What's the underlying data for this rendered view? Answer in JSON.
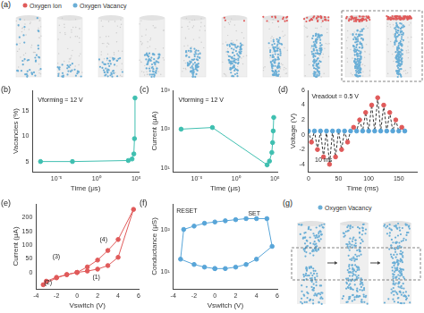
{
  "diagrams": {
    "a": {
      "label": "(a)",
      "legend": [
        {
          "text": "Oxygen Ion",
          "color": "#e05a5a"
        },
        {
          "text": "Oxygen Vacancy",
          "color": "#6aaed6"
        }
      ]
    },
    "g": {
      "label": "(g)",
      "legend": [
        {
          "text": "Oxygen Vacancy",
          "color": "#6aaed6"
        }
      ]
    }
  },
  "chart_data": [
    {
      "panel": "(b)",
      "type": "line",
      "x_label": "Time (μs)",
      "y_label": "Vacancies (%)",
      "log": "x",
      "grid": false,
      "xlim": [
        1e-08,
        200000.0
      ],
      "xticks": [
        {
          "value": 1e-05,
          "label": "10⁻⁵"
        },
        {
          "value": 1,
          "label": "10⁰"
        },
        {
          "value": 100000.0,
          "label": "10⁵"
        }
      ],
      "ylim": [
        3,
        19
      ],
      "yticks": [
        5,
        10,
        15
      ],
      "annotations": [
        "Vforming = 12 V"
      ],
      "series": [
        {
          "color": "#3fbfb0",
          "marker": "circle",
          "line_style": "solid",
          "x": [
            1e-07,
            0.001,
            10000.0,
            30000.0,
            50000.0,
            60000.0,
            70000.0
          ],
          "values": [
            5,
            5,
            5.2,
            5.5,
            6.5,
            9.5,
            17.5
          ]
        }
      ]
    },
    {
      "panel": "(c)",
      "type": "line",
      "x_label": "Time (μs)",
      "y_label": "Current (μA)",
      "log": true,
      "grid": false,
      "xlim": [
        1e-08,
        200000.0
      ],
      "xticks": [
        {
          "value": 1e-05,
          "label": "10⁻⁵"
        },
        {
          "value": 1,
          "label": "10⁰"
        },
        {
          "value": 100000.0,
          "label": "10⁵"
        }
      ],
      "ylim": [
        8,
        1000
      ],
      "yticks": [
        {
          "value": 10,
          "label": "10¹"
        },
        {
          "value": 100,
          "label": "10²"
        },
        {
          "value": 1000,
          "label": "10³"
        }
      ],
      "annotations": [
        "Vforming = 12 V"
      ],
      "series": [
        {
          "color": "#3fbfb0",
          "marker": "circle",
          "line_style": "solid",
          "x": [
            1e-07,
            0.001,
            10000.0,
            20000.0,
            40000.0,
            50000.0,
            60000.0,
            70000.0
          ],
          "values": [
            100,
            110,
            12,
            15,
            25,
            45,
            90,
            200
          ]
        }
      ]
    },
    {
      "panel": "(d)",
      "type": "line",
      "x_label": "Time (ms)",
      "y_label": "Voltage (V)",
      "grid": false,
      "xlim": [
        0,
        180
      ],
      "xticks": [
        0,
        50,
        100,
        150
      ],
      "ylim": [
        -5,
        6
      ],
      "yticks": [
        -4,
        -2,
        0,
        2,
        4,
        6
      ],
      "annotations": [
        "Vreadout = 0.5 V",
        "10 ms"
      ],
      "series": [
        {
          "color": "#333333",
          "marker": "circle",
          "line_style": "dashed",
          "x": [
            0,
            5,
            10,
            15,
            20,
            25,
            30,
            35,
            40,
            45,
            50,
            55,
            60,
            65,
            70,
            75,
            80,
            85,
            90,
            95,
            100,
            105,
            110,
            115,
            120,
            125,
            130,
            135,
            140,
            145,
            150,
            155,
            160
          ],
          "values": [
            0.5,
            -1,
            0.5,
            -2,
            0.5,
            -3,
            0.5,
            -4,
            0.5,
            -3,
            0.5,
            -2,
            0.5,
            -1,
            0.5,
            1,
            0.5,
            2,
            0.5,
            3,
            0.5,
            4,
            0.5,
            5,
            0.5,
            4,
            0.5,
            3,
            0.5,
            2,
            0.5,
            1,
            0.5
          ],
          "colors": [
            "#58a5d8",
            "#e05a5a",
            "#58a5d8",
            "#e05a5a",
            "#58a5d8",
            "#e05a5a",
            "#58a5d8",
            "#e05a5a",
            "#58a5d8",
            "#e05a5a",
            "#58a5d8",
            "#e05a5a",
            "#58a5d8",
            "#e05a5a",
            "#58a5d8",
            "#e05a5a",
            "#58a5d8",
            "#e05a5a",
            "#58a5d8",
            "#e05a5a",
            "#58a5d8",
            "#e05a5a",
            "#58a5d8",
            "#e05a5a",
            "#58a5d8",
            "#e05a5a",
            "#58a5d8",
            "#e05a5a",
            "#58a5d8",
            "#e05a5a",
            "#58a5d8",
            "#e05a5a",
            "#58a5d8"
          ]
        }
      ]
    },
    {
      "panel": "(e)",
      "type": "line",
      "x_label": "Vswitch (V)",
      "y_label": "Current (μA)",
      "grid": false,
      "xlim": [
        -4,
        6
      ],
      "xticks": [
        -4,
        -2,
        0,
        2,
        4,
        6
      ],
      "ylim": [
        -60,
        250
      ],
      "yticks": [
        0,
        50,
        100,
        150,
        200
      ],
      "annotations": [
        "(1)",
        "(2)",
        "(3)",
        "(4)"
      ],
      "series": [
        {
          "color": "#e05a5a",
          "marker": "circle",
          "line_style": "solid",
          "x": [
            0,
            1,
            2,
            3,
            4,
            5.5,
            4,
            3,
            2,
            1,
            0,
            -1,
            -2,
            -3,
            -3.3,
            -2,
            -1,
            0
          ],
          "values": [
            0,
            5,
            12,
            25,
            55,
            230,
            120,
            80,
            45,
            20,
            0,
            -8,
            -18,
            -32,
            -45,
            -20,
            -8,
            0
          ]
        }
      ]
    },
    {
      "panel": "(f)",
      "type": "line",
      "x_label": "Vswitch (V)",
      "y_label": "Conductance (μS)",
      "log": "y",
      "grid": false,
      "xlim": [
        -4,
        6
      ],
      "xticks": [
        -4,
        -2,
        0,
        2,
        4,
        6
      ],
      "ylim": [
        4,
        400
      ],
      "yticks": [
        {
          "value": 10,
          "label": "10¹"
        },
        {
          "value": 100,
          "label": "10²"
        }
      ],
      "annotations": [
        "SET",
        "RESET"
      ],
      "series": [
        {
          "color": "#58a5d8",
          "marker": "circle",
          "line_style": "solid",
          "x": [
            0,
            1,
            2,
            3,
            4,
            5.5,
            5,
            4,
            3,
            2,
            1,
            0,
            -1,
            -2,
            -3,
            -3.3,
            -2,
            -1,
            0
          ],
          "values": [
            12,
            12,
            13,
            15,
            20,
            40,
            180,
            180,
            180,
            170,
            160,
            150,
            140,
            120,
            100,
            20,
            15,
            13,
            12
          ]
        }
      ]
    }
  ]
}
